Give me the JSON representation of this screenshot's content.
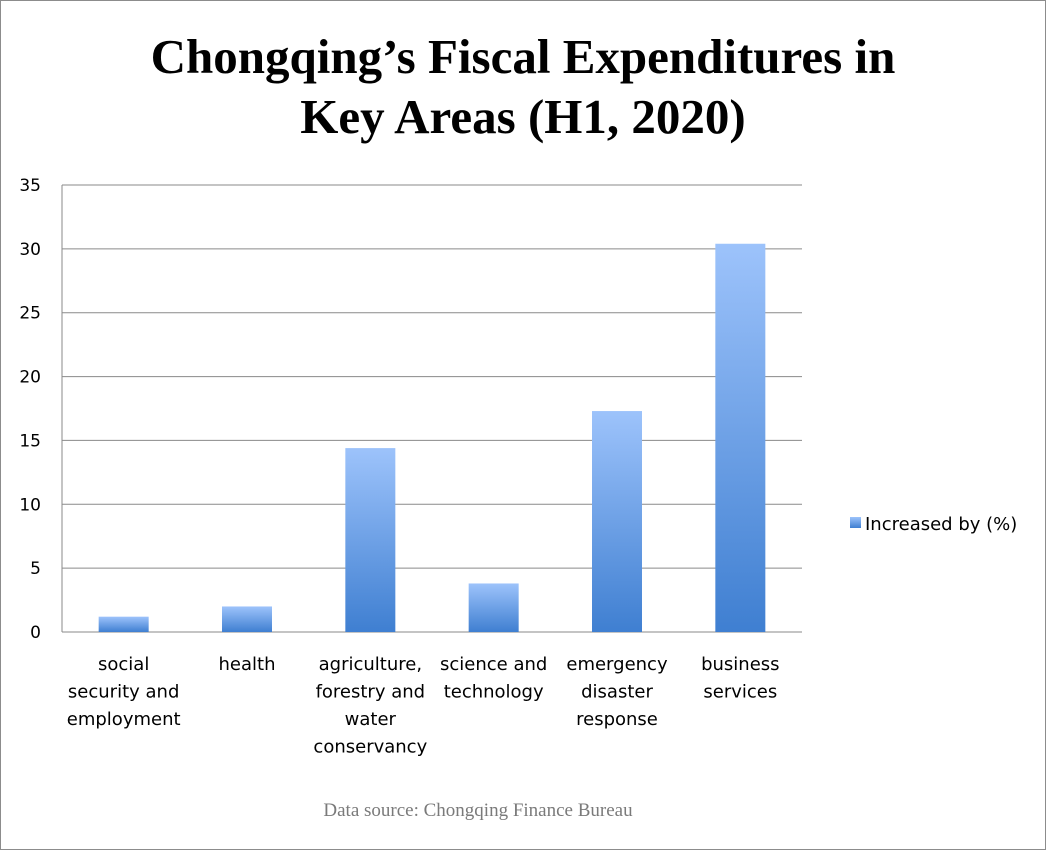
{
  "chart_data": {
    "type": "bar",
    "title_lines": [
      "Chongqing’s Fiscal Expenditures in",
      "Key Areas (H1, 2020)"
    ],
    "categories": [
      [
        "social",
        "security and",
        "employment"
      ],
      [
        "health"
      ],
      [
        "agriculture,",
        "forestry and",
        "water",
        "conservancy"
      ],
      [
        "science and",
        "technology"
      ],
      [
        "emergency",
        "disaster",
        "response"
      ],
      [
        "business",
        "services"
      ]
    ],
    "series": [
      {
        "name": "Increased by (%)",
        "values": [
          1.2,
          2.0,
          14.4,
          3.8,
          17.3,
          30.4
        ]
      }
    ],
    "ylim": [
      0,
      35
    ],
    "yticks": [
      "0",
      "5",
      "10",
      "15",
      "20",
      "25",
      "30",
      "35"
    ],
    "grid": true,
    "legend_position": "right",
    "bar_color_top": "#9dc3fb",
    "bar_color_bottom": "#3f7fd1",
    "source": "Data source: Chongqing Finance Bureau"
  }
}
